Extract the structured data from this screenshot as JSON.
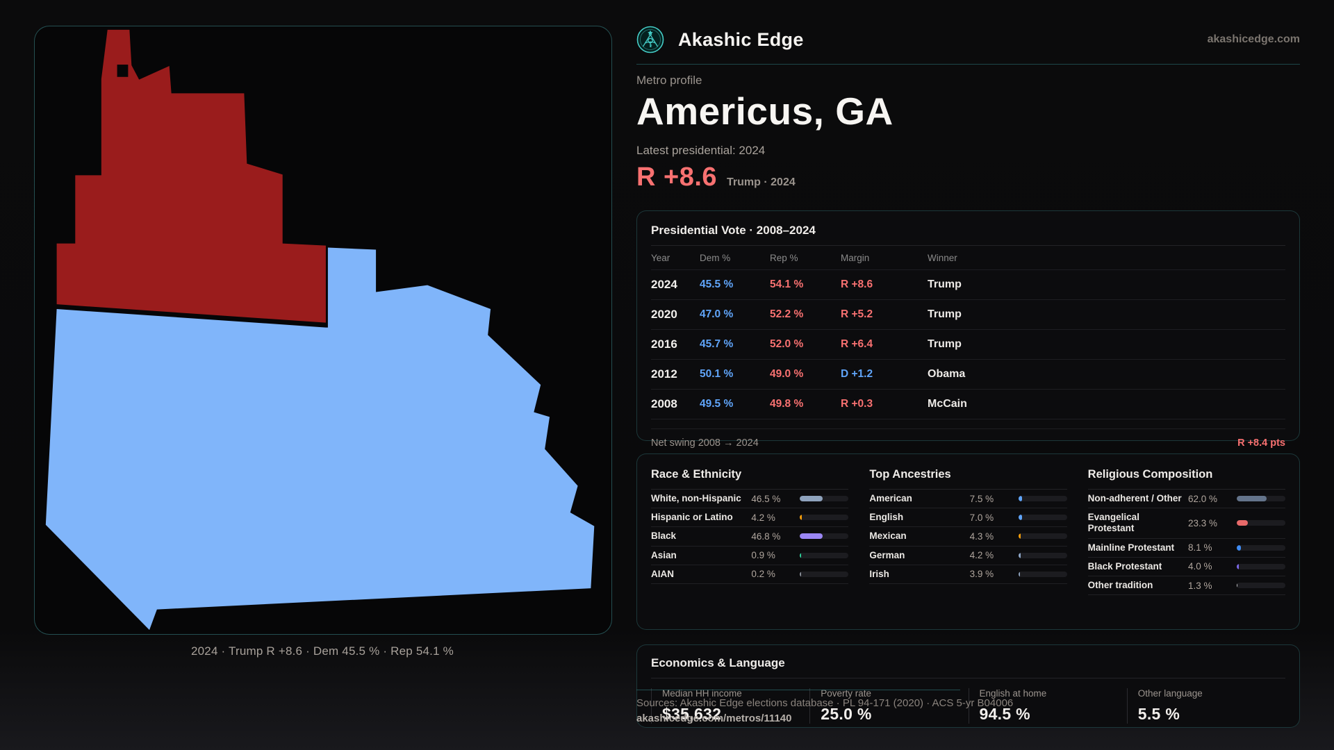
{
  "header": {
    "brand": "Akashic Edge",
    "site": "akashicedge.com"
  },
  "profile": {
    "eyebrow": "Metro profile",
    "title": "Americus, GA",
    "subtitle": "Latest presidential: 2024",
    "headline_margin": "R +8.6",
    "headline_note": "Trump · 2024"
  },
  "map": {
    "caption": "2024 · Trump R +8.6 · Dem 45.5 % · Rep 54.1 %",
    "red_fill": "#9a1c1c",
    "blue_fill": "#80b5fa"
  },
  "vote_table": {
    "title": "Presidential Vote · 2008–2024",
    "columns": {
      "year": "Year",
      "dem": "Dem %",
      "rep": "Rep %",
      "margin": "Margin",
      "winner": "Winner"
    },
    "rows": [
      {
        "year": "2024",
        "dem": "45.5 %",
        "rep": "54.1 %",
        "margin": "R +8.6",
        "party": "R",
        "winner": "Trump"
      },
      {
        "year": "2020",
        "dem": "47.0 %",
        "rep": "52.2 %",
        "margin": "R +5.2",
        "party": "R",
        "winner": "Trump"
      },
      {
        "year": "2016",
        "dem": "45.7 %",
        "rep": "52.0 %",
        "margin": "R +6.4",
        "party": "R",
        "winner": "Trump"
      },
      {
        "year": "2012",
        "dem": "50.1 %",
        "rep": "49.0 %",
        "margin": "D +1.2",
        "party": "D",
        "winner": "Obama"
      },
      {
        "year": "2008",
        "dem": "49.5 %",
        "rep": "49.8 %",
        "margin": "R +0.3",
        "party": "R",
        "winner": "McCain"
      }
    ],
    "footer_label": "Net swing 2008 → 2024",
    "footer_value": "R +8.4 pts"
  },
  "demographics": {
    "panels": [
      {
        "title": "Race & Ethnicity",
        "rows": [
          {
            "label": "White, non-Hispanic",
            "value": "46.5 %",
            "pct": 46.5,
            "color": "#8fa3bd"
          },
          {
            "label": "Hispanic or Latino",
            "value": "4.2 %",
            "pct": 4.2,
            "color": "#f59e0b"
          },
          {
            "label": "Black",
            "value": "46.8 %",
            "pct": 46.8,
            "color": "#9b87f5"
          },
          {
            "label": "Asian",
            "value": "0.9 %",
            "pct": 0.9,
            "color": "#2fd49c"
          },
          {
            "label": "AIAN",
            "value": "0.2 %",
            "pct": 0.2,
            "color": "#8a8f98"
          }
        ]
      },
      {
        "title": "Top Ancestries",
        "rows": [
          {
            "label": "American",
            "value": "7.5 %",
            "pct": 7.5,
            "color": "#60a5fa"
          },
          {
            "label": "English",
            "value": "7.0 %",
            "pct": 7.0,
            "color": "#60a5fa"
          },
          {
            "label": "Mexican",
            "value": "4.3 %",
            "pct": 4.3,
            "color": "#f59e0b"
          },
          {
            "label": "German",
            "value": "4.2 %",
            "pct": 4.2,
            "color": "#8fa8c9"
          },
          {
            "label": "Irish",
            "value": "3.9 %",
            "pct": 3.9,
            "color": "#8fa3bd"
          }
        ]
      },
      {
        "title": "Religious Composition",
        "rows": [
          {
            "label": "Non-adherent / Other",
            "value": "62.0 %",
            "pct": 62.0,
            "color": "#64748b"
          },
          {
            "label": "Evangelical Protestant",
            "value": "23.3 %",
            "pct": 23.3,
            "color": "#e86a6a"
          },
          {
            "label": "Mainline Protestant",
            "value": "8.1 %",
            "pct": 8.1,
            "color": "#3f8cf3"
          },
          {
            "label": "Black Protestant",
            "value": "4.0 %",
            "pct": 4.0,
            "color": "#7c68e8"
          },
          {
            "label": "Other tradition",
            "value": "1.3 %",
            "pct": 1.3,
            "color": "#c9c9cc"
          }
        ]
      }
    ]
  },
  "economics": {
    "title": "Economics & Language",
    "stats": [
      {
        "label": "Median HH income",
        "value": "$35,632"
      },
      {
        "label": "Poverty rate",
        "value": "25.0 %"
      },
      {
        "label": "English at home",
        "value": "94.5 %"
      },
      {
        "label": "Other language",
        "value": "5.5 %"
      }
    ]
  },
  "footer": {
    "sources": "Sources: Akashic Edge elections database · PL 94-171 (2020) · ACS 5-yr B04006",
    "permalink": "akashicedge.com/metros/11140"
  }
}
